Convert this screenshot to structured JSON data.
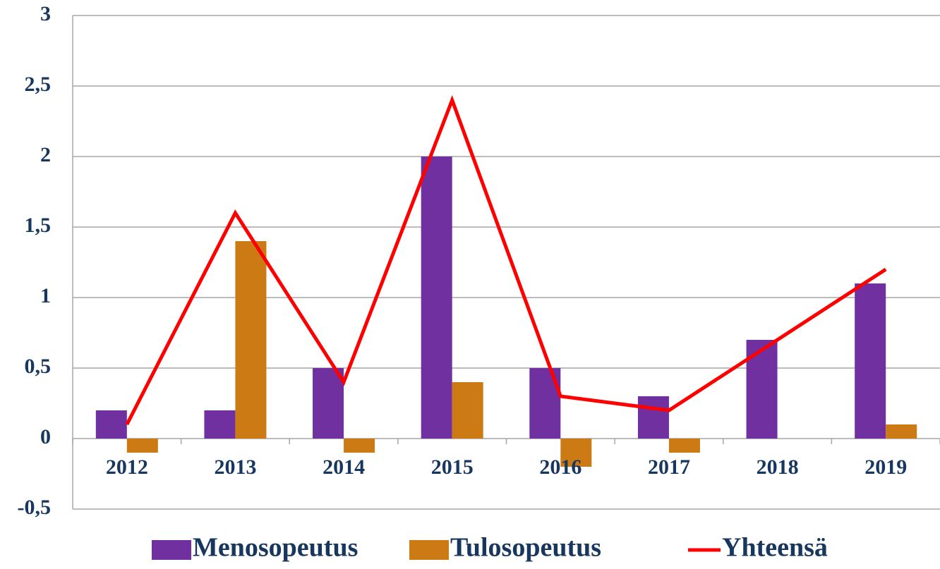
{
  "chart_data": {
    "type": "bar-line",
    "categories": [
      "2012",
      "2013",
      "2014",
      "2015",
      "2016",
      "2017",
      "2018",
      "2019"
    ],
    "series": [
      {
        "name": "Menosopeutus",
        "color": "#7030a0",
        "kind": "bar",
        "values": [
          0.2,
          0.2,
          0.5,
          2.0,
          0.5,
          0.3,
          0.7,
          1.1
        ]
      },
      {
        "name": "Tulosopeutus",
        "color": "#cc7a14",
        "kind": "bar",
        "values": [
          -0.1,
          1.4,
          -0.1,
          0.4,
          -0.2,
          -0.1,
          0,
          0.1
        ]
      },
      {
        "name": "Yhteensä",
        "color": "#ff0000",
        "kind": "line",
        "values": [
          0.1,
          1.6,
          0.4,
          2.4,
          0.3,
          0.2,
          0.7,
          1.2
        ]
      }
    ],
    "ylim": [
      -0.5,
      3
    ],
    "yticks": [
      {
        "value": -0.5,
        "label": "-0,5"
      },
      0,
      {
        "value": 0.5,
        "label": "0,5"
      },
      1,
      {
        "value": 1.5,
        "label": "1,5"
      },
      2,
      {
        "value": 2.5,
        "label": "2,5"
      },
      3
    ],
    "grid": true,
    "legend": "bottom"
  }
}
